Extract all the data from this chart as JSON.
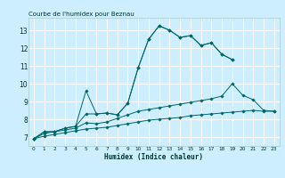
{
  "title": "Courbe de l'humidex pour Beznau",
  "xlabel": "Humidex (Indice chaleur)",
  "background_color": "#cceeff",
  "grid_color": "#ffffff",
  "line_color": "#006666",
  "xlim_min": -0.5,
  "xlim_max": 23.5,
  "ylim_min": 6.5,
  "ylim_max": 13.7,
  "xticks": [
    0,
    1,
    2,
    3,
    4,
    5,
    6,
    7,
    8,
    9,
    10,
    11,
    12,
    13,
    14,
    15,
    16,
    17,
    18,
    19,
    20,
    21,
    22,
    23
  ],
  "yticks": [
    7,
    8,
    9,
    10,
    11,
    12,
    13
  ],
  "series": [
    {
      "x": [
        0,
        1,
        2,
        3,
        4,
        5,
        6,
        7,
        8,
        9,
        10,
        11,
        12,
        13,
        14,
        15,
        16,
        17,
        18,
        19
      ],
      "y": [
        6.9,
        7.3,
        7.3,
        7.5,
        7.6,
        9.6,
        8.3,
        8.35,
        8.25,
        8.9,
        10.9,
        12.5,
        13.25,
        13.0,
        12.6,
        12.7,
        12.15,
        12.3,
        11.65,
        11.35
      ]
    },
    {
      "x": [
        0,
        1,
        2,
        3,
        4,
        5,
        6,
        7,
        8,
        9,
        10,
        11,
        12,
        13,
        14,
        15,
        16,
        17,
        18,
        19,
        20,
        21,
        22,
        23
      ],
      "y": [
        6.9,
        7.3,
        7.3,
        7.5,
        7.6,
        8.3,
        8.3,
        8.35,
        8.25,
        8.9,
        10.9,
        12.5,
        13.25,
        13.0,
        12.6,
        12.7,
        12.15,
        12.3,
        11.65,
        11.35,
        null,
        null,
        null,
        null
      ]
    },
    {
      "x": [
        0,
        1,
        2,
        3,
        4,
        5,
        6,
        7,
        8,
        9,
        10,
        11,
        12,
        13,
        14,
        15,
        16,
        17,
        18,
        19,
        20,
        21,
        22,
        23
      ],
      "y": [
        6.9,
        7.2,
        7.3,
        7.4,
        7.5,
        7.8,
        7.75,
        7.85,
        8.05,
        8.25,
        8.45,
        8.55,
        8.65,
        8.75,
        8.85,
        8.95,
        9.05,
        9.15,
        9.3,
        10.0,
        9.35,
        9.1,
        8.5,
        8.45
      ]
    },
    {
      "x": [
        0,
        1,
        2,
        3,
        4,
        5,
        6,
        7,
        8,
        9,
        10,
        11,
        12,
        13,
        14,
        15,
        16,
        17,
        18,
        19,
        20,
        21,
        22,
        23
      ],
      "y": [
        6.9,
        7.05,
        7.15,
        7.25,
        7.35,
        7.45,
        7.5,
        7.55,
        7.65,
        7.75,
        7.85,
        7.95,
        8.0,
        8.05,
        8.1,
        8.2,
        8.25,
        8.3,
        8.35,
        8.4,
        8.45,
        8.5,
        8.45,
        8.45
      ]
    }
  ]
}
